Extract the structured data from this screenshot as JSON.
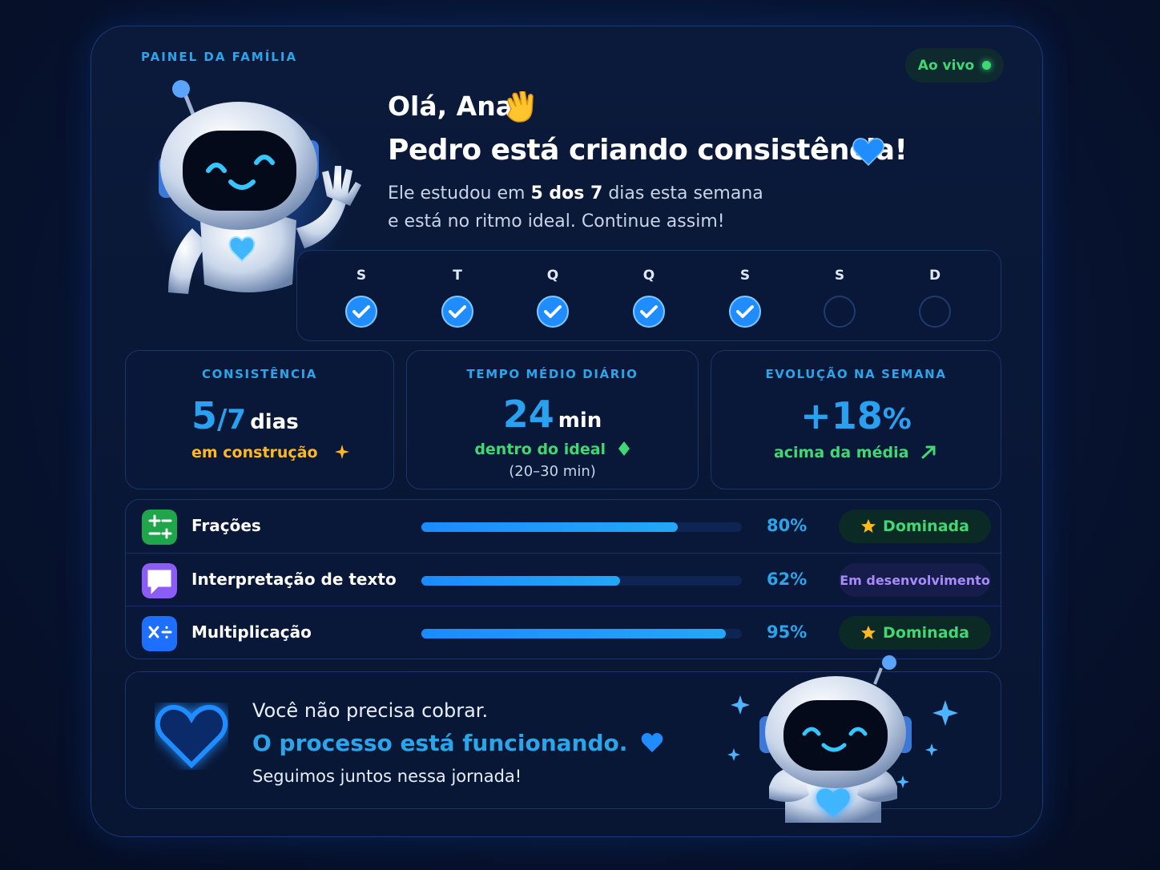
{
  "header": {
    "label": "PAINEL DA FAMÍLIA",
    "status": "Ao vivo"
  },
  "greeting": {
    "hello": "Olá, Ana",
    "headline": "Pedro está criando consistência!",
    "lead": "Ele estudou em",
    "highlight": "5 dos 7",
    "rest": "dias esta semana",
    "line2": "e está no ritmo ideal. Continue assim!"
  },
  "week": {
    "days": [
      {
        "label": "S",
        "done": true
      },
      {
        "label": "T",
        "done": true
      },
      {
        "label": "Q",
        "done": true
      },
      {
        "label": "Q",
        "done": true
      },
      {
        "label": "S",
        "done": true
      },
      {
        "label": "S",
        "done": false
      },
      {
        "label": "D",
        "done": false
      }
    ]
  },
  "stats": [
    {
      "title": "CONSISTÊNCIA",
      "value": 5,
      "suffix": "/7",
      "unit": "dias",
      "note": "em construção"
    },
    {
      "title": "TEMPO MÉDIO DIÁRIO",
      "value": 24,
      "unit": "min",
      "note": "dentro do ideal",
      "detail": "(20–30 min)"
    },
    {
      "title": "EVOLUÇÃO NA SEMANA",
      "value": "+18",
      "unit": "%",
      "note": "acima da média"
    }
  ],
  "skills": [
    {
      "name": "Frações",
      "progress": 80,
      "progress_label": "80%",
      "status": "Dominada",
      "mastered": true
    },
    {
      "name": "Interpretação de texto",
      "progress": 62,
      "progress_label": "62%",
      "status": "Em desenvolvimento",
      "mastered": false
    },
    {
      "name": "Multiplicação",
      "progress": 95,
      "progress_label": "95%",
      "status": "Dominada",
      "mastered": true
    }
  ],
  "footer": {
    "line1": "Você não precisa cobrar.",
    "line2": "O processo está funcionando.",
    "line3": "Seguimos juntos nessa jornada!"
  }
}
